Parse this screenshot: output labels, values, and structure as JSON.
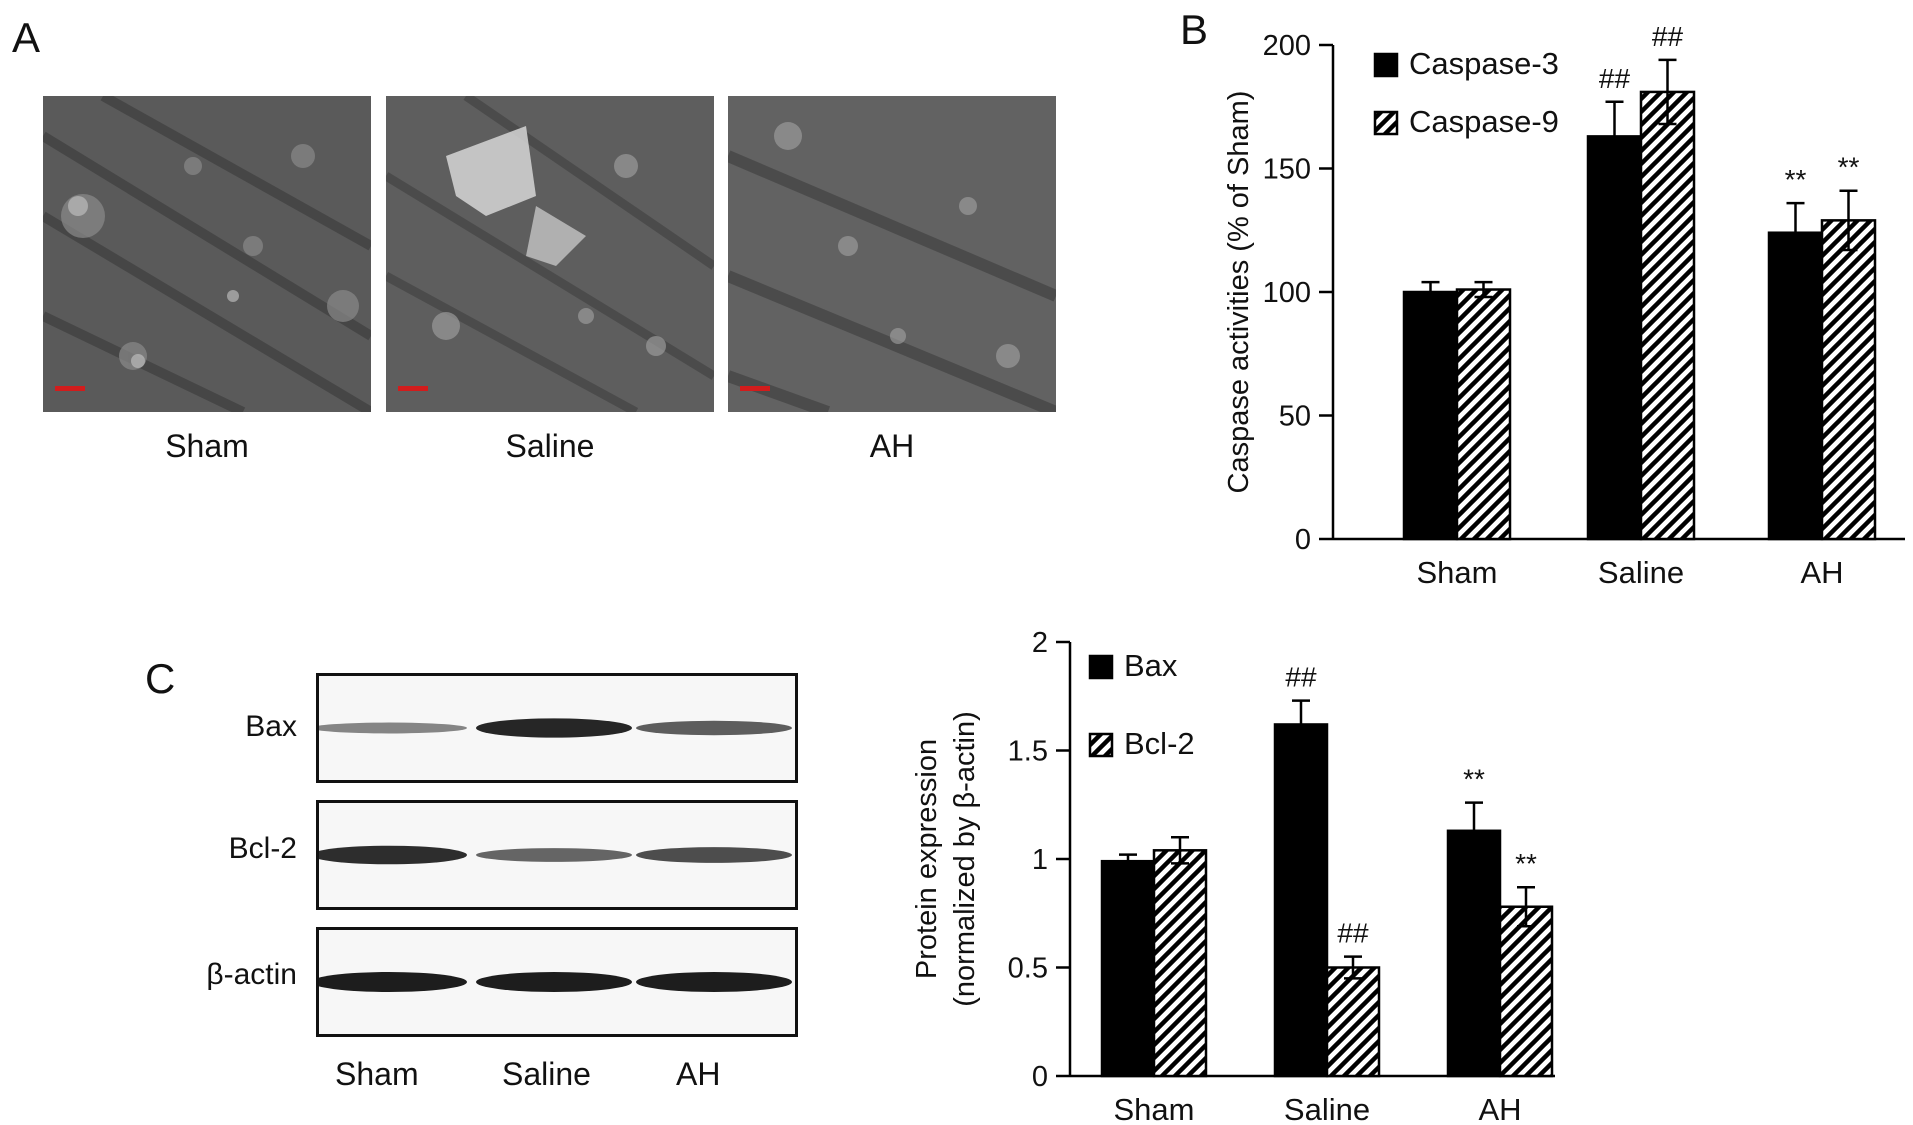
{
  "panels": {
    "a": "A",
    "b": "B",
    "c": "C"
  },
  "micrographs": [
    {
      "label": "Sham"
    },
    {
      "label": "Saline"
    },
    {
      "label": "AH"
    }
  ],
  "blot": {
    "proteins": [
      "Bax",
      "Bcl-2",
      "β-actin"
    ],
    "lanes": [
      "Sham",
      "Saline",
      "AH"
    ],
    "band_intensity": {
      "Bax": [
        0.35,
        0.95,
        0.6
      ],
      "Bcl-2": [
        0.9,
        0.55,
        0.7
      ],
      "β-actin": [
        1.0,
        1.0,
        1.0
      ]
    }
  },
  "chart_data": [
    {
      "type": "bar",
      "categories": [
        "Sham",
        "Saline",
        "AH"
      ],
      "ylabel": "Caspase activities (% of Sham)",
      "ylim": [
        0,
        200
      ],
      "yticks": [
        0,
        50,
        100,
        150,
        200
      ],
      "legend_position": "top-left",
      "series": [
        {
          "name": "Caspase-3",
          "fill": "solid",
          "values": [
            100,
            163,
            124
          ],
          "errors": [
            4,
            14,
            12
          ],
          "annotations": [
            "",
            "##",
            "**"
          ]
        },
        {
          "name": "Caspase-9",
          "fill": "hatched",
          "values": [
            101,
            181,
            129
          ],
          "errors": [
            3,
            13,
            12
          ],
          "annotations": [
            "",
            "##",
            "**"
          ]
        }
      ]
    },
    {
      "type": "bar",
      "categories": [
        "Sham",
        "Saline",
        "AH"
      ],
      "ylabel": [
        "Protein expression",
        "(normalized by β-actin)"
      ],
      "ylim": [
        0,
        2
      ],
      "yticks": [
        0,
        0.5,
        1,
        1.5,
        2
      ],
      "legend_position": "top-left",
      "series": [
        {
          "name": "Bax",
          "fill": "solid",
          "values": [
            0.99,
            1.62,
            1.13
          ],
          "errors": [
            0.03,
            0.11,
            0.13
          ],
          "annotations": [
            "",
            "##",
            "**"
          ]
        },
        {
          "name": "Bcl-2",
          "fill": "hatched",
          "values": [
            1.04,
            0.5,
            0.78
          ],
          "errors": [
            0.06,
            0.05,
            0.09
          ],
          "annotations": [
            "",
            "##",
            "**"
          ]
        }
      ]
    }
  ]
}
